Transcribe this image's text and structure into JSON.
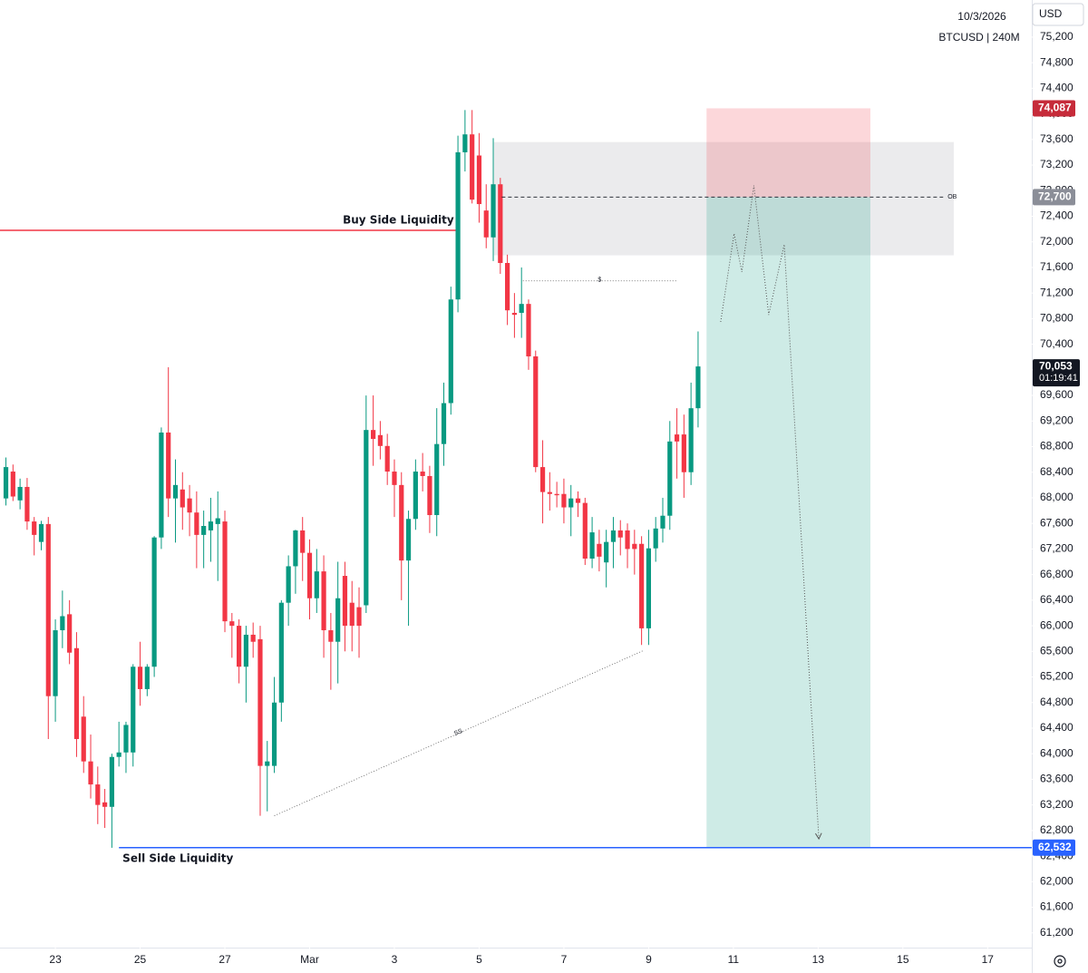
{
  "chart_data": {
    "type": "candlestick",
    "date": "10/3/2026",
    "symbol": "BTCUSD | 240M",
    "currency": "USD",
    "up_color": "#089981",
    "down_color": "#f23645",
    "grid": false,
    "x": [
      -1,
      0,
      1,
      2,
      3,
      4,
      5,
      6,
      7,
      8,
      9,
      10,
      11,
      12,
      13,
      14,
      15,
      16,
      17,
      18,
      19,
      20,
      21,
      22,
      23,
      24,
      25,
      26,
      27,
      28,
      29,
      30,
      31,
      32,
      33,
      34,
      35,
      36,
      37,
      38,
      39,
      40,
      41,
      42,
      43,
      44,
      45,
      46,
      47,
      48,
      49,
      50,
      51,
      52,
      53,
      54,
      55,
      56,
      57,
      58,
      59,
      60,
      61,
      62,
      63,
      64,
      65,
      66,
      67,
      68,
      69,
      70,
      71,
      72,
      73,
      74,
      75,
      76,
      77,
      78,
      79,
      80,
      81,
      82,
      83,
      84,
      85,
      86,
      87,
      88,
      89,
      90,
      91,
      92,
      93,
      94,
      95,
      96,
      97
    ],
    "open": [
      67990,
      68410,
      67960,
      68170,
      67630,
      67310,
      67590,
      64900,
      65930,
      66180,
      65650,
      64580,
      63880,
      63520,
      63240,
      63170,
      63950,
      64020,
      64020,
      65360,
      65010,
      65360,
      67380,
      69020,
      67990,
      68130,
      67990,
      67770,
      67420,
      67490,
      67590,
      67630,
      66070,
      66000,
      65360,
      65860,
      65790,
      63810,
      63810,
      64800,
      66360,
      66930,
      67490,
      67140,
      66430,
      66850,
      65930,
      65750,
      66780,
      66360,
      66290,
      66320,
      69060,
      68980,
      68810,
      68410,
      68200,
      67020,
      67670,
      68410,
      68340,
      67730,
      68840,
      69480,
      71100,
      73400,
      73680,
      73350,
      72490,
      72070,
      72900,
      71670,
      70890,
      70890,
      71030,
      70210,
      68480,
      68090,
      68060,
      68060,
      67850,
      67990,
      67920,
      67050,
      67280,
      66990,
      67310,
      67490,
      67490,
      67280,
      67280,
      65960,
      67210,
      67520,
      67720,
      68990,
      68990,
      68400,
      69400
    ],
    "high": [
      68630,
      68520,
      68300,
      68310,
      67700,
      67640,
      67700,
      66100,
      66550,
      66400,
      65900,
      64900,
      64300,
      63800,
      63450,
      64000,
      64500,
      64500,
      65400,
      65750,
      65400,
      67400,
      69100,
      70040,
      68600,
      68400,
      68200,
      68100,
      67800,
      68000,
      68100,
      67800,
      66200,
      66100,
      66000,
      66050,
      66000,
      64200,
      65200,
      66400,
      67100,
      67500,
      67700,
      67350,
      67200,
      67100,
      66200,
      67000,
      67000,
      66700,
      66600,
      69600,
      69600,
      69200,
      69000,
      68600,
      68400,
      67800,
      68600,
      68700,
      68500,
      69400,
      69800,
      71300,
      73660,
      74060,
      74060,
      73700,
      72900,
      73620,
      73000,
      71800,
      71200,
      71600,
      71100,
      70300,
      68900,
      68400,
      68250,
      68300,
      68200,
      68100,
      68000,
      67700,
      67500,
      67500,
      67700,
      67650,
      67600,
      67500,
      67400,
      67500,
      67700,
      68000,
      69200,
      69400,
      69300,
      69800,
      70600
    ],
    "low": [
      67880,
      67950,
      67820,
      67500,
      67100,
      67180,
      64230,
      64500,
      65650,
      65400,
      63950,
      63700,
      63300,
      62900,
      62840,
      62530,
      63800,
      63700,
      63800,
      64750,
      64900,
      65200,
      67200,
      67700,
      67300,
      67500,
      67400,
      66900,
      66900,
      67000,
      66700,
      65900,
      65500,
      65100,
      64800,
      65500,
      63030,
      63100,
      63700,
      64500,
      66000,
      66500,
      66700,
      66100,
      66200,
      65500,
      65000,
      65100,
      65600,
      65600,
      65500,
      66200,
      68500,
      68600,
      68200,
      67700,
      66400,
      66000,
      67500,
      68100,
      67450,
      67400,
      68500,
      69300,
      70900,
      73100,
      72600,
      72300,
      71900,
      71700,
      71500,
      70700,
      70500,
      70500,
      70000,
      68400,
      67600,
      67800,
      67850,
      67600,
      67400,
      67700,
      66950,
      66900,
      66850,
      66600,
      66900,
      67100,
      66900,
      66800,
      65700,
      65700,
      67000,
      67300,
      67500,
      68300,
      68000,
      68200,
      69100
    ],
    "close": [
      68480,
      68020,
      68170,
      67630,
      67420,
      67590,
      64900,
      65930,
      66150,
      65580,
      64230,
      63880,
      63520,
      63200,
      63170,
      63950,
      64020,
      64450,
      65360,
      65010,
      65360,
      67380,
      69020,
      67990,
      68200,
      67850,
      67770,
      67420,
      67560,
      67630,
      67680,
      66070,
      66000,
      65360,
      65860,
      65750,
      63810,
      63880,
      64800,
      66360,
      66930,
      67490,
      67140,
      66430,
      66850,
      65930,
      65750,
      66430,
      66000,
      66000,
      66000,
      69060,
      68920,
      68810,
      68410,
      68200,
      67020,
      67670,
      68410,
      68340,
      67730,
      68840,
      69480,
      71100,
      73400,
      73680,
      72660,
      72590,
      72070,
      72900,
      71670,
      70930,
      70860,
      71030,
      70210,
      68480,
      68090,
      68060,
      68040,
      67850,
      67990,
      67920,
      67050,
      67460,
      67080,
      67310,
      67490,
      67380,
      67200,
      67200,
      65960,
      67210,
      67520,
      67720,
      68880,
      68880,
      68400,
      69400,
      70053
    ],
    "last_price": {
      "value": 70053,
      "label": "70,053"
    },
    "countdown": "01:19:41",
    "xlim": [
      -1.84,
      144.25
    ],
    "xticks": [
      {
        "value": 6,
        "label": "23"
      },
      {
        "value": 18,
        "label": "25"
      },
      {
        "value": 30,
        "label": "27"
      },
      {
        "value": 42,
        "label": "Mar"
      },
      {
        "value": 54,
        "label": "3"
      },
      {
        "value": 66,
        "label": "5"
      },
      {
        "value": 78,
        "label": "7"
      },
      {
        "value": 90,
        "label": "9"
      },
      {
        "value": 102,
        "label": "11"
      },
      {
        "value": 114,
        "label": "13"
      },
      {
        "value": 126,
        "label": "15"
      },
      {
        "value": 138,
        "label": "17"
      }
    ],
    "ylim": [
      60970,
      75780
    ],
    "yticks": [
      {
        "value": 61200,
        "label": "61,200"
      },
      {
        "value": 61600,
        "label": "61,600"
      },
      {
        "value": 62000,
        "label": "62,000"
      },
      {
        "value": 62400,
        "label": "62,400"
      },
      {
        "value": 62800,
        "label": "62,800"
      },
      {
        "value": 63200,
        "label": "63,200"
      },
      {
        "value": 63600,
        "label": "63,600"
      },
      {
        "value": 64000,
        "label": "64,000"
      },
      {
        "value": 64400,
        "label": "64,400"
      },
      {
        "value": 64800,
        "label": "64,800"
      },
      {
        "value": 65200,
        "label": "65,200"
      },
      {
        "value": 65600,
        "label": "65,600"
      },
      {
        "value": 66000,
        "label": "66,000"
      },
      {
        "value": 66400,
        "label": "66,400"
      },
      {
        "value": 66800,
        "label": "66,800"
      },
      {
        "value": 67200,
        "label": "67,200"
      },
      {
        "value": 67600,
        "label": "67,600"
      },
      {
        "value": 68000,
        "label": "68,000"
      },
      {
        "value": 68400,
        "label": "68,400"
      },
      {
        "value": 68800,
        "label": "68,800"
      },
      {
        "value": 69200,
        "label": "69,200"
      },
      {
        "value": 69600,
        "label": "69,600"
      },
      {
        "value": 70000,
        "label": "70,000"
      },
      {
        "value": 70400,
        "label": "70,400"
      },
      {
        "value": 70800,
        "label": "70,800"
      },
      {
        "value": 71200,
        "label": "71,200"
      },
      {
        "value": 71600,
        "label": "71,600"
      },
      {
        "value": 72000,
        "label": "72,000"
      },
      {
        "value": 72400,
        "label": "72,400"
      },
      {
        "value": 72800,
        "label": "72,800"
      },
      {
        "value": 73200,
        "label": "73,200"
      },
      {
        "value": 73600,
        "label": "73,600"
      },
      {
        "value": 74000,
        "label": "74,000"
      },
      {
        "value": 74400,
        "label": "74,400"
      },
      {
        "value": 74800,
        "label": "74,800"
      },
      {
        "value": 75200,
        "label": "75,200"
      }
    ],
    "position": {
      "x_start": 98.2,
      "x_end": 121.4,
      "stop": {
        "value": 74087,
        "label": "74,087"
      },
      "entry": {
        "value": 72700,
        "label": "72,700"
      },
      "target": {
        "value": 62532,
        "label": "62,532"
      }
    },
    "order_block": {
      "label": "OB",
      "top": 73560,
      "bottom": 71790,
      "x_start": 68.1,
      "x_end": 133.2,
      "level": 72700,
      "level_x_start": 69.2,
      "level_x_end": 131.7
    },
    "buy_side_liquidity": {
      "label": "Buy Side Liquidity",
      "price": 72180,
      "x_end": 62.7
    },
    "sell_side_liquidity": {
      "label": "Sell Side Liquidity",
      "price": 62532,
      "x_start": 15
    },
    "equal_highs": {
      "label": "$",
      "price": 71390,
      "x_start": 72.2,
      "x_end": 93.9
    },
    "equal_lows": {
      "label": "SS",
      "x": [
        37,
        89.2
      ],
      "y": [
        63030,
        65610
      ]
    },
    "projection": {
      "x": [
        100.2,
        102.1,
        103.2,
        104.9,
        107,
        109.2,
        114.1
      ],
      "y": [
        70750,
        72130,
        71530,
        72880,
        70860,
        71960,
        62670
      ]
    }
  }
}
